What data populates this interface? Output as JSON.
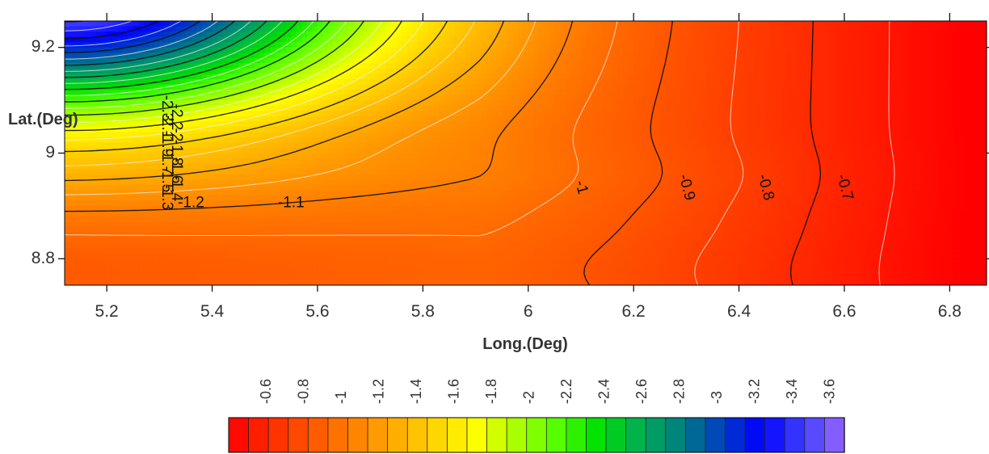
{
  "chart_data": {
    "type": "heatmap",
    "subtype": "filled-contour",
    "xlabel": "Long.(Deg)",
    "ylabel": "Lat.(Deg)",
    "xlim": [
      5.12,
      6.87
    ],
    "ylim": [
      8.75,
      9.25
    ],
    "xticks": [
      {
        "value": 5.2,
        "label": "5.2"
      },
      {
        "value": 5.4,
        "label": "5.4"
      },
      {
        "value": 5.6,
        "label": "5.6"
      },
      {
        "value": 5.8,
        "label": "5.8"
      },
      {
        "value": 6.0,
        "label": "6"
      },
      {
        "value": 6.2,
        "label": "6.2"
      },
      {
        "value": 6.4,
        "label": "6.4"
      },
      {
        "value": 6.6,
        "label": "6.6"
      },
      {
        "value": 6.8,
        "label": "6.8"
      }
    ],
    "yticks": [
      {
        "value": 8.8,
        "label": "8.8"
      },
      {
        "value": 9.0,
        "label": "9"
      },
      {
        "value": 9.2,
        "label": "9.2"
      }
    ],
    "value_range": [
      -3.6,
      -0.6
    ],
    "contour_interval": 0.1,
    "colorbar": {
      "levels": [
        -0.6,
        -0.8,
        -1,
        -1.2,
        -1.4,
        -1.6,
        -1.8,
        -2,
        -2.2,
        -2.4,
        -2.6,
        -2.8,
        -3,
        -3.2,
        -3.4,
        -3.6
      ],
      "labels": [
        "-0.6",
        "-0.8",
        "-1",
        "-1.2",
        "-1.4",
        "-1.6",
        "-1.8",
        "-2",
        "-2.2",
        "-2.4",
        "-2.6",
        "-2.8",
        "-3",
        "-3.2",
        "-3.4",
        "-3.6"
      ],
      "colors": [
        "#ff0000",
        "#ff2a00",
        "#ff5500",
        "#ff7f00",
        "#ffaa00",
        "#ffd400",
        "#ffff00",
        "#aaff00",
        "#55ff00",
        "#00e000",
        "#00b050",
        "#007f7f",
        "#0040c0",
        "#0000ff",
        "#4040ff",
        "#9966ff"
      ]
    },
    "contour_labels": [
      {
        "text": "-1.2",
        "x": 5.36,
        "y": 8.905
      },
      {
        "text": "-1.1",
        "x": 5.55,
        "y": 8.905
      },
      {
        "text": "-1",
        "x": 6.1,
        "y": 8.935
      },
      {
        "text": "-0.9",
        "x": 6.3,
        "y": 8.935
      },
      {
        "text": "-0.8",
        "x": 6.45,
        "y": 8.935
      },
      {
        "text": "-0.7",
        "x": 6.6,
        "y": 8.935
      }
    ],
    "stacked_labels": [
      "-2.3",
      "-2.2",
      "-2.1",
      "-2",
      "-1.9",
      "-1.8",
      "-1.7",
      "-1.6",
      "-1.5",
      "-1.4",
      "-1.3"
    ],
    "data_grid_description": "Values about -3.6 at the upper-left corner (5.12, 9.25), rising to about -0.6 at the east edge; a -1.2 valley runs along latitude ~8.9 in the west.",
    "grid": false,
    "legend": "bottom colorbar"
  }
}
